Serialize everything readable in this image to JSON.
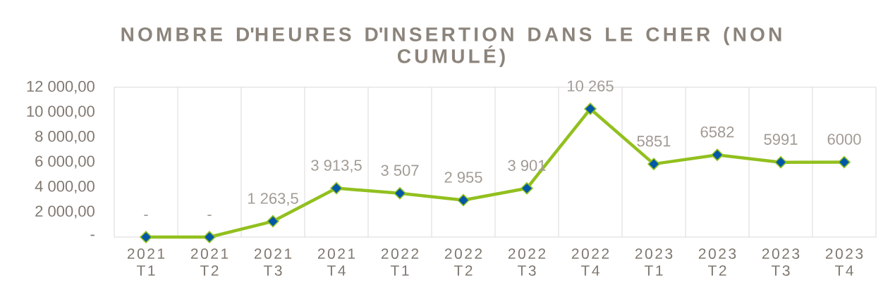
{
  "chart_data": {
    "type": "line",
    "title": "NOMBRE D'HEURES D'INSERTION DANS LE CHER (NON CUMULÉ)",
    "categories": [
      "2021 T1",
      "2021 T2",
      "2021 T3",
      "2021 T4",
      "2022 T1",
      "2022 T2",
      "2022 T3",
      "2022 T4",
      "2023 T1",
      "2023 T2",
      "2023 T3",
      "2023 T4"
    ],
    "series": [
      {
        "color": "#92c01e",
        "colors": [
          "#0058a6",
          "#0058a6",
          "#0058a6",
          "#0058a6",
          "#0058a6",
          "#0058a6",
          "#0058a6",
          "#0058a6",
          "#0058a6",
          "#0058a6",
          "#0058a6",
          "#0058a6"
        ],
        "values": [
          0,
          0,
          1263.5,
          3913.5,
          3507,
          2955,
          3901,
          10265,
          5851,
          6582,
          5991,
          6000
        ],
        "value_labels": [
          "-",
          "-",
          "1 263,5",
          "3 913,5",
          "3 507",
          "2 955",
          "3 901",
          "10 265",
          "5851",
          "6582",
          "5991",
          "6000"
        ]
      }
    ],
    "ylim": [
      0,
      12000
    ],
    "yticks": [
      {
        "value": 0,
        "label": "-"
      },
      {
        "value": 2000,
        "label": "2 000,00"
      },
      {
        "value": 4000,
        "label": "4 000,00"
      },
      {
        "value": 6000,
        "label": "6 000,00"
      },
      {
        "value": 8000,
        "label": "8 000,00"
      },
      {
        "value": 10000,
        "label": "10 000,00"
      },
      {
        "value": 12000,
        "label": "12 000,00"
      }
    ],
    "grid": "x",
    "marker": "diamond",
    "line_style": "solid"
  }
}
